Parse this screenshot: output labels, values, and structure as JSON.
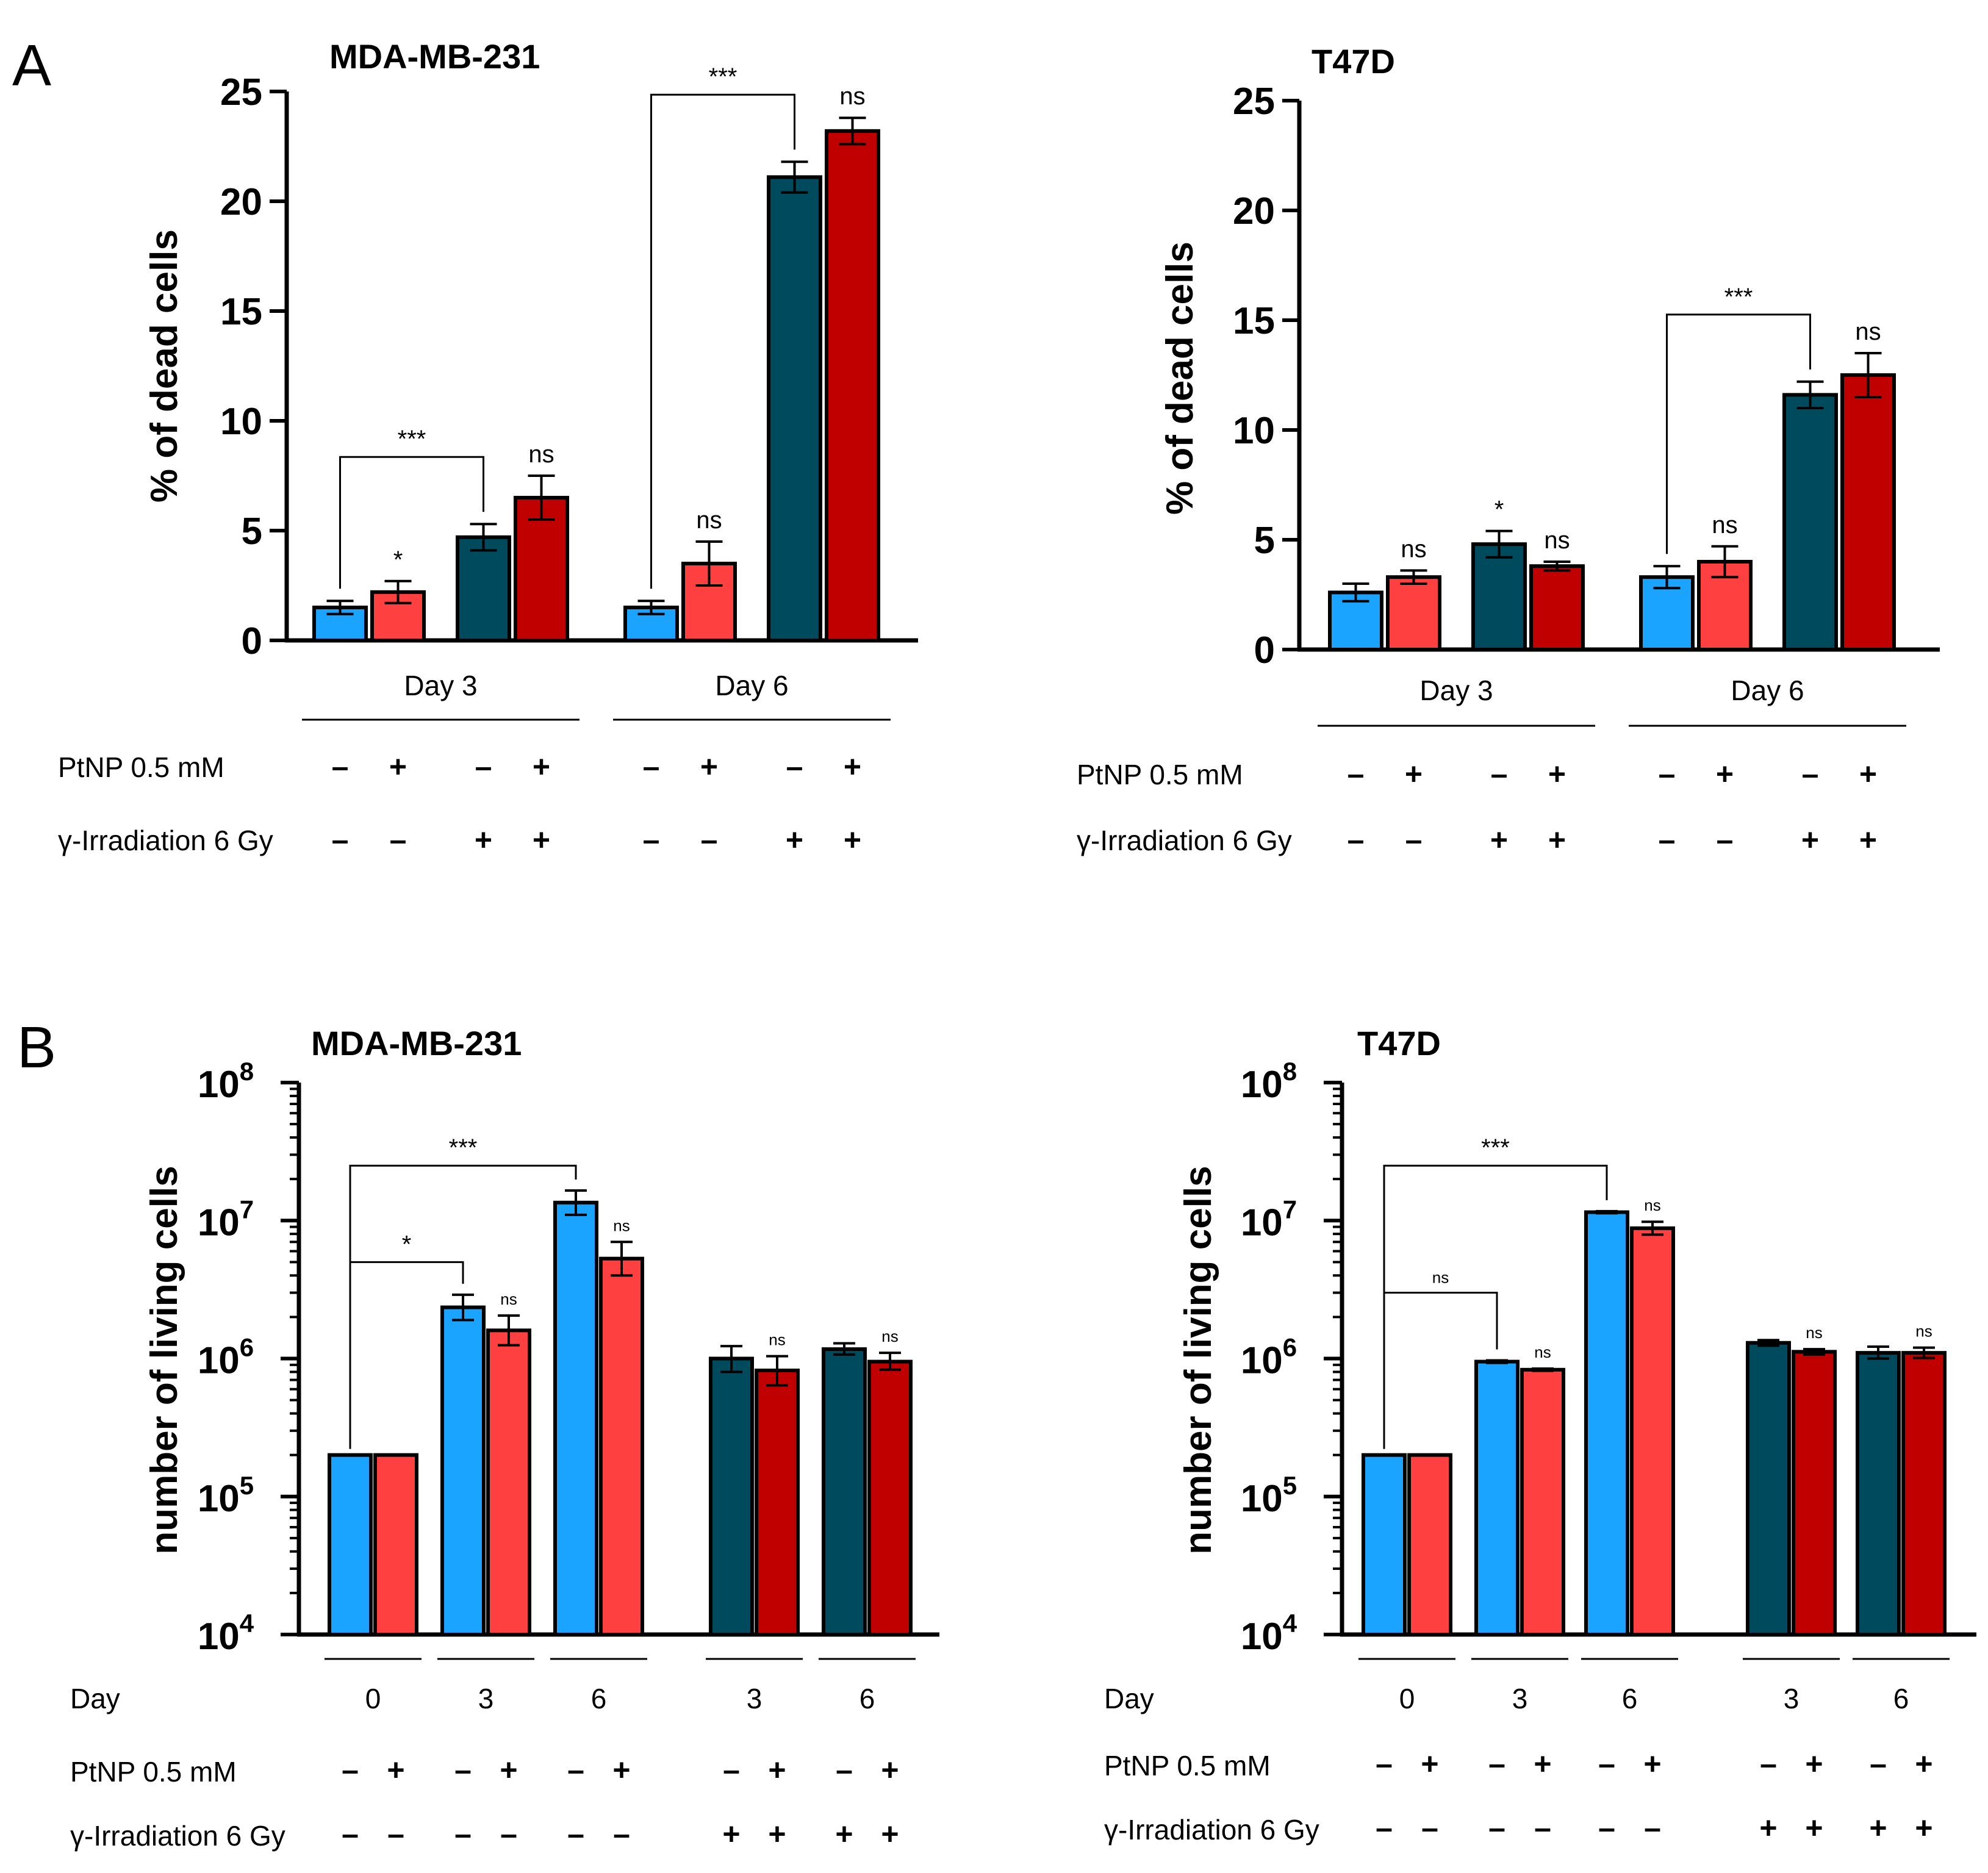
{
  "panel_letters": [
    "A",
    "B"
  ],
  "colors": {
    "ctrl": "#1aa3ff",
    "ptnp": "#ff4040",
    "irr": "#004a5e",
    "irr_ptnp": "#c00000",
    "outline": "#000000"
  },
  "row_labels": {
    "ptnp": "PtNP 0.5 mM",
    "irradiation": "γ-Irradiation 6 Gy",
    "day": "Day"
  },
  "signs": {
    "plus": "+",
    "minus": "–"
  },
  "chart_data": [
    {
      "id": "A1",
      "type": "bar",
      "title": "MDA-MB-231",
      "ylabel": "% of dead cells",
      "ylim": [
        0,
        25
      ],
      "yticks": [
        "0",
        "5",
        "10",
        "15",
        "20",
        "25"
      ],
      "groups": [
        "Day 3",
        "Day 6"
      ],
      "bars": [
        {
          "group": 0,
          "color": "ctrl",
          "value": 1.5,
          "err": 0.3,
          "ptnp": "–",
          "irr": "–"
        },
        {
          "group": 0,
          "color": "ptnp",
          "value": 2.2,
          "err": 0.5,
          "ptnp": "+",
          "irr": "–",
          "label": "*"
        },
        {
          "group": 0,
          "color": "irr",
          "value": 4.7,
          "err": 0.6,
          "ptnp": "–",
          "irr": "+"
        },
        {
          "group": 0,
          "color": "irr_ptnp",
          "value": 6.5,
          "err": 1.0,
          "ptnp": "+",
          "irr": "+",
          "label": "ns"
        },
        {
          "group": 1,
          "color": "ctrl",
          "value": 1.5,
          "err": 0.3,
          "ptnp": "–",
          "irr": "–"
        },
        {
          "group": 1,
          "color": "ptnp",
          "value": 3.5,
          "err": 1.0,
          "ptnp": "+",
          "irr": "–",
          "label": "ns"
        },
        {
          "group": 1,
          "color": "irr",
          "value": 21.1,
          "err": 0.7,
          "ptnp": "–",
          "irr": "+"
        },
        {
          "group": 1,
          "color": "irr_ptnp",
          "value": 23.2,
          "err": 0.6,
          "ptnp": "+",
          "irr": "+",
          "label": "ns"
        }
      ],
      "brackets": [
        {
          "from": 0,
          "to": 2,
          "label": "***"
        },
        {
          "from": 4,
          "to": 6,
          "label": "***"
        }
      ]
    },
    {
      "id": "A2",
      "type": "bar",
      "title": "T47D",
      "ylabel": "% of dead cells",
      "ylim": [
        0,
        25
      ],
      "yticks": [
        "0",
        "5",
        "10",
        "15",
        "20",
        "25"
      ],
      "groups": [
        "Day 3",
        "Day 6"
      ],
      "bars": [
        {
          "group": 0,
          "color": "ctrl",
          "value": 2.6,
          "err": 0.4,
          "ptnp": "–",
          "irr": "–"
        },
        {
          "group": 0,
          "color": "ptnp",
          "value": 3.3,
          "err": 0.3,
          "ptnp": "+",
          "irr": "–",
          "label": "ns"
        },
        {
          "group": 0,
          "color": "irr",
          "value": 4.8,
          "err": 0.6,
          "ptnp": "–",
          "irr": "+",
          "label": "*"
        },
        {
          "group": 0,
          "color": "irr_ptnp",
          "value": 3.8,
          "err": 0.2,
          "ptnp": "+",
          "irr": "+",
          "label": "ns"
        },
        {
          "group": 1,
          "color": "ctrl",
          "value": 3.3,
          "err": 0.5,
          "ptnp": "–",
          "irr": "–"
        },
        {
          "group": 1,
          "color": "ptnp",
          "value": 4.0,
          "err": 0.7,
          "ptnp": "+",
          "irr": "–",
          "label": "ns"
        },
        {
          "group": 1,
          "color": "irr",
          "value": 11.6,
          "err": 0.6,
          "ptnp": "–",
          "irr": "+"
        },
        {
          "group": 1,
          "color": "irr_ptnp",
          "value": 12.5,
          "err": 1.0,
          "ptnp": "+",
          "irr": "+",
          "label": "ns"
        }
      ],
      "brackets": [
        {
          "from": 4,
          "to": 6,
          "label": "***"
        }
      ]
    },
    {
      "id": "B1",
      "type": "bar",
      "scale": "log",
      "title": "MDA-MB-231",
      "ylabel": "number of living cells",
      "ylim": [
        10000,
        100000000
      ],
      "yticks": [
        {
          "base": "10",
          "exp": "4"
        },
        {
          "base": "10",
          "exp": "5"
        },
        {
          "base": "10",
          "exp": "6"
        },
        {
          "base": "10",
          "exp": "7"
        },
        {
          "base": "10",
          "exp": "8"
        }
      ],
      "day_labels": [
        "0",
        "3",
        "6",
        "3",
        "6"
      ],
      "bars": [
        {
          "color": "ctrl",
          "value": 200000,
          "err_up": 0,
          "err_down": 0,
          "ptnp": "–",
          "irr": "–"
        },
        {
          "color": "ptnp",
          "value": 200000,
          "err_up": 0,
          "err_down": 0,
          "ptnp": "+",
          "irr": "–"
        },
        {
          "color": "ctrl",
          "value": 2350000,
          "err_up": 550000,
          "err_down": 450000,
          "ptnp": "–",
          "irr": "–"
        },
        {
          "color": "ptnp",
          "value": 1600000,
          "err_up": 450000,
          "err_down": 350000,
          "ptnp": "+",
          "irr": "–",
          "label": "ns"
        },
        {
          "color": "ctrl",
          "value": 13500000,
          "err_up": 3000000,
          "err_down": 2500000,
          "ptnp": "–",
          "irr": "–"
        },
        {
          "color": "ptnp",
          "value": 5300000,
          "err_up": 1700000,
          "err_down": 1300000,
          "ptnp": "+",
          "irr": "–",
          "label": "ns"
        },
        {
          "color": "irr",
          "value": 1000000,
          "err_up": 230000,
          "err_down": 200000,
          "ptnp": "–",
          "irr": "+"
        },
        {
          "color": "irr_ptnp",
          "value": 820000,
          "err_up": 220000,
          "err_down": 180000,
          "ptnp": "+",
          "irr": "+",
          "label": "ns"
        },
        {
          "color": "irr",
          "value": 1170000,
          "err_up": 120000,
          "err_down": 100000,
          "ptnp": "–",
          "irr": "+"
        },
        {
          "color": "irr_ptnp",
          "value": 950000,
          "err_up": 150000,
          "err_down": 120000,
          "ptnp": "+",
          "irr": "+",
          "label": "ns"
        }
      ],
      "brackets": [
        {
          "from": 0,
          "to": 2,
          "label": "*",
          "level": 5000000
        },
        {
          "from": 0,
          "to": 4,
          "label": "***",
          "level": 25000000
        }
      ]
    },
    {
      "id": "B2",
      "type": "bar",
      "scale": "log",
      "title": "T47D",
      "ylabel": "number of living cells",
      "ylim": [
        10000,
        100000000
      ],
      "yticks": [
        {
          "base": "10",
          "exp": "4"
        },
        {
          "base": "10",
          "exp": "5"
        },
        {
          "base": "10",
          "exp": "6"
        },
        {
          "base": "10",
          "exp": "7"
        },
        {
          "base": "10",
          "exp": "8"
        }
      ],
      "day_labels": [
        "0",
        "3",
        "6",
        "3",
        "6"
      ],
      "bars": [
        {
          "color": "ctrl",
          "value": 200000,
          "err_up": 0,
          "err_down": 0,
          "ptnp": "–",
          "irr": "–"
        },
        {
          "color": "ptnp",
          "value": 200000,
          "err_up": 0,
          "err_down": 0,
          "ptnp": "+",
          "irr": "–"
        },
        {
          "color": "ctrl",
          "value": 950000,
          "err_up": 20000,
          "err_down": 20000,
          "ptnp": "–",
          "irr": "–"
        },
        {
          "color": "ptnp",
          "value": 830000,
          "err_up": 15000,
          "err_down": 15000,
          "ptnp": "+",
          "irr": "–",
          "label": "ns"
        },
        {
          "color": "ctrl",
          "value": 11500000,
          "err_up": 200000,
          "err_down": 200000,
          "ptnp": "–",
          "irr": "–"
        },
        {
          "color": "ptnp",
          "value": 8800000,
          "err_up": 1000000,
          "err_down": 900000,
          "ptnp": "+",
          "irr": "–",
          "label": "ns"
        },
        {
          "color": "irr",
          "value": 1300000,
          "err_up": 60000,
          "err_down": 60000,
          "ptnp": "–",
          "irr": "+"
        },
        {
          "color": "irr_ptnp",
          "value": 1120000,
          "err_up": 50000,
          "err_down": 50000,
          "ptnp": "+",
          "irr": "+",
          "label": "ns"
        },
        {
          "color": "irr",
          "value": 1100000,
          "err_up": 120000,
          "err_down": 100000,
          "ptnp": "–",
          "irr": "+"
        },
        {
          "color": "irr_ptnp",
          "value": 1100000,
          "err_up": 100000,
          "err_down": 90000,
          "ptnp": "+",
          "irr": "+",
          "label": "ns"
        }
      ],
      "brackets": [
        {
          "from": 0,
          "to": 2,
          "label": "ns",
          "level": 3000000
        },
        {
          "from": 0,
          "to": 4,
          "label": "***",
          "level": 25000000
        }
      ]
    }
  ]
}
